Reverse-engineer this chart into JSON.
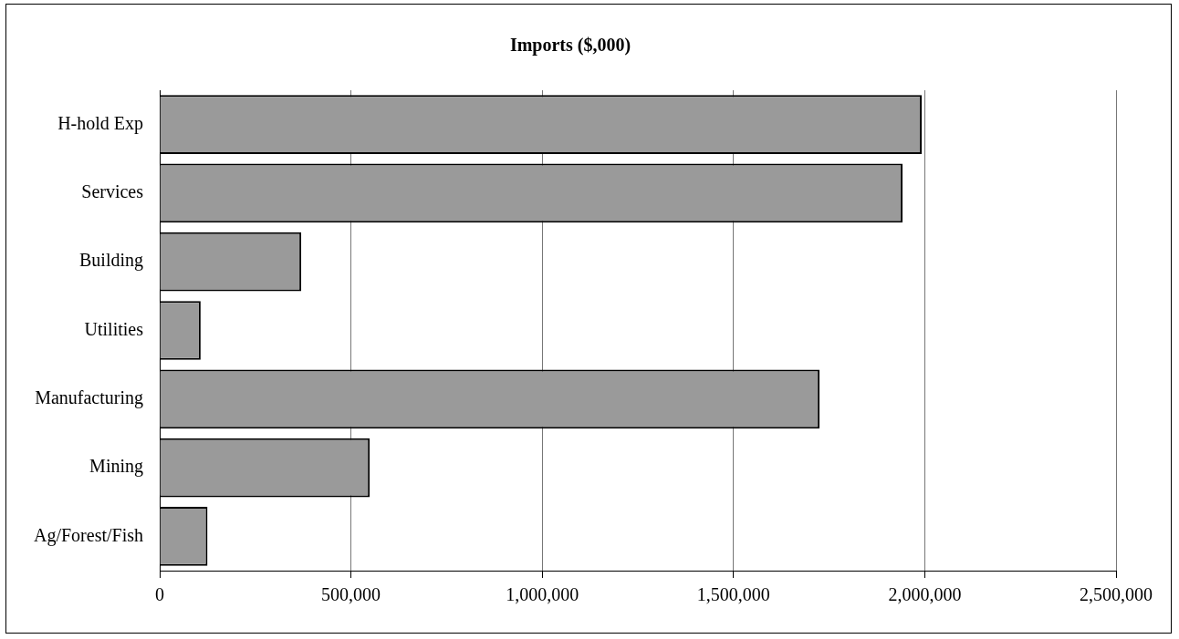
{
  "chart_data": {
    "type": "bar",
    "orientation": "horizontal",
    "title": "Imports ($,000)",
    "categories": [
      "H-hold Exp",
      "Services",
      "Building",
      "Utilities",
      "Manufacturing",
      "Mining",
      "Ag/Forest/Fish"
    ],
    "values": [
      1992000,
      1942000,
      370000,
      107000,
      1725000,
      549000,
      125000
    ],
    "color": "#9a9a9a",
    "xlim": [
      0,
      2500000
    ],
    "xticks": [
      {
        "value": 0,
        "label": "0"
      },
      {
        "value": 500000,
        "label": "500,000"
      },
      {
        "value": 1000000,
        "label": "1,000,000"
      },
      {
        "value": 1500000,
        "label": "1,500,000"
      },
      {
        "value": 2000000,
        "label": "2,000,000"
      },
      {
        "value": 2500000,
        "label": "2,500,000"
      }
    ],
    "grid": "x",
    "legend": false
  }
}
